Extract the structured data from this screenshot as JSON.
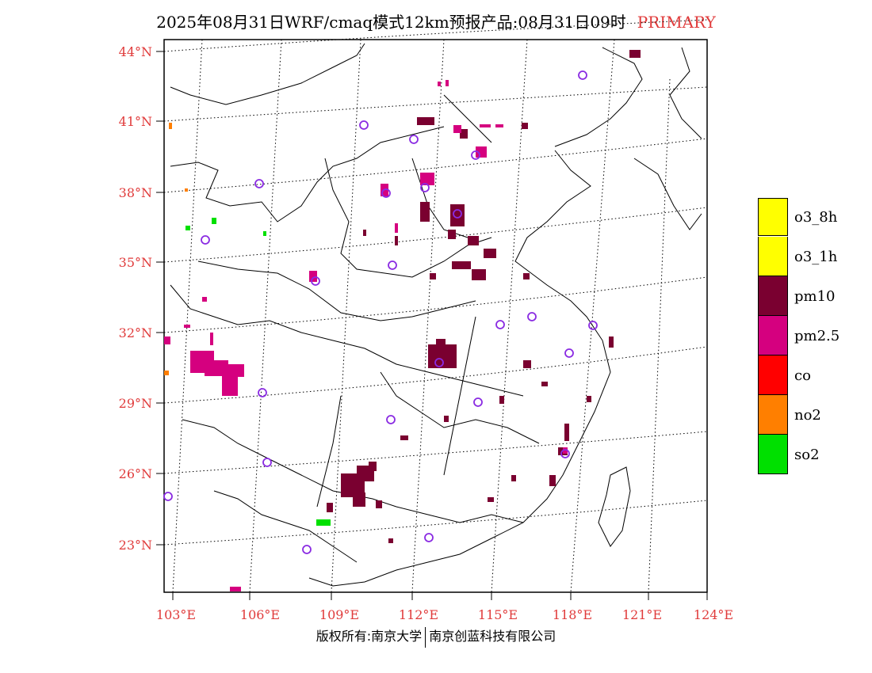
{
  "header": {
    "title": "2025年08月31日WRF/cmaq模式12km预报产品:08月31日09时",
    "tag": "PRIMARY"
  },
  "axes": {
    "lat_labels": [
      "44°N",
      "41°N",
      "38°N",
      "35°N",
      "32°N",
      "29°N",
      "26°N",
      "23°N"
    ],
    "lon_labels": [
      "103°E",
      "106°E",
      "109°E",
      "112°E",
      "115°E",
      "118°E",
      "121°E",
      "124°E"
    ]
  },
  "legend": {
    "items": [
      {
        "label": "o3_8h",
        "color": "#ffff00"
      },
      {
        "label": "o3_1h",
        "color": "#ffff00"
      },
      {
        "label": "pm10",
        "color": "#7a0030"
      },
      {
        "label": "pm2.5",
        "color": "#d5007f"
      },
      {
        "label": "co",
        "color": "#ff0000"
      },
      {
        "label": "no2",
        "color": "#ff7f00"
      },
      {
        "label": "so2",
        "color": "#00e000"
      }
    ]
  },
  "footer": {
    "left": "版权所有:南京大学",
    "right": "南京创蓝科技有限公司"
  },
  "colors": {
    "axis_label": "#e03b3b",
    "station_marker": "#8a2be2",
    "pm10": "#7a0030",
    "pm25": "#d5007f",
    "no2": "#ff7f00",
    "so2": "#00e000"
  }
}
